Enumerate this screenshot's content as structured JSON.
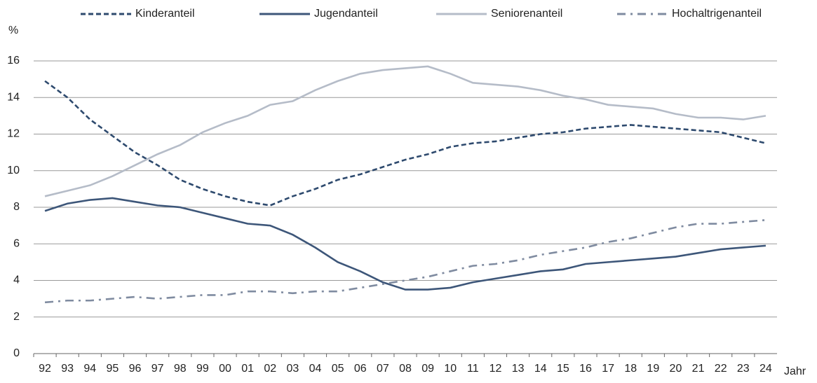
{
  "chart_data": {
    "type": "line",
    "y_label": "%",
    "x_label": "Jahr",
    "categories": [
      "92",
      "93",
      "94",
      "95",
      "96",
      "97",
      "98",
      "99",
      "00",
      "01",
      "02",
      "03",
      "04",
      "05",
      "06",
      "07",
      "08",
      "09",
      "10",
      "11",
      "12",
      "13",
      "14",
      "15",
      "16",
      "17",
      "18",
      "19",
      "20",
      "21",
      "22",
      "23",
      "24"
    ],
    "series": [
      {
        "name": "Kinderanteil",
        "color": "#2e4a6e",
        "dash": "dashed",
        "values": [
          14.9,
          14.0,
          12.8,
          11.9,
          11.0,
          10.3,
          9.5,
          9.0,
          8.6,
          8.3,
          8.1,
          8.6,
          9.0,
          9.5,
          9.8,
          10.2,
          10.6,
          10.9,
          11.3,
          11.5,
          11.6,
          11.8,
          12.0,
          12.1,
          12.3,
          12.4,
          12.5,
          12.4,
          12.3,
          12.2,
          12.1,
          11.8,
          11.5
        ]
      },
      {
        "name": "Jugendanteil",
        "color": "#3d5679",
        "dash": "solid",
        "values": [
          7.8,
          8.2,
          8.4,
          8.5,
          8.3,
          8.1,
          8.0,
          7.7,
          7.4,
          7.1,
          7.0,
          6.5,
          5.8,
          5.0,
          4.5,
          3.9,
          3.5,
          3.5,
          3.6,
          3.9,
          4.1,
          4.3,
          4.5,
          4.6,
          4.9,
          5.0,
          5.1,
          5.2,
          5.3,
          5.5,
          5.7,
          5.8,
          5.9
        ]
      },
      {
        "name": "Seniorenanteil",
        "color": "#b5bcc8",
        "dash": "solid",
        "values": [
          8.6,
          8.9,
          9.2,
          9.7,
          10.3,
          10.9,
          11.4,
          12.1,
          12.6,
          13.0,
          13.6,
          13.8,
          14.4,
          14.9,
          15.3,
          15.5,
          15.6,
          15.7,
          15.3,
          14.8,
          14.7,
          14.6,
          14.4,
          14.1,
          13.9,
          13.6,
          13.5,
          13.4,
          13.1,
          12.9,
          12.9,
          12.8,
          13.0
        ]
      },
      {
        "name": "Hochaltrigenanteil",
        "color": "#7f8ba0",
        "dash": "dashdot",
        "values": [
          2.8,
          2.9,
          2.9,
          3.0,
          3.1,
          3.0,
          3.1,
          3.2,
          3.2,
          3.4,
          3.4,
          3.3,
          3.4,
          3.4,
          3.6,
          3.8,
          4.0,
          4.2,
          4.5,
          4.8,
          4.9,
          5.1,
          5.4,
          5.6,
          5.8,
          6.1,
          6.3,
          6.6,
          6.9,
          7.1,
          7.1,
          7.2,
          7.3
        ]
      }
    ],
    "ylim": [
      0,
      16
    ],
    "yticks": [
      0,
      2,
      4,
      6,
      8,
      10,
      12,
      14,
      16
    ],
    "grid": true,
    "legend": "top"
  }
}
